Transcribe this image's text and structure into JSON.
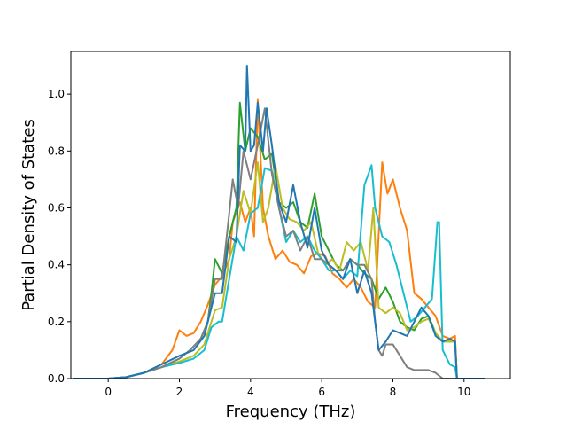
{
  "chart_data": {
    "type": "line",
    "title": "",
    "xlabel": "Frequency (THz)",
    "ylabel": "Partial Density of States",
    "xlim": [
      -1.05,
      11.3
    ],
    "ylim": [
      0.0,
      1.15
    ],
    "xticks": [
      0,
      2,
      4,
      6,
      8,
      10
    ],
    "yticks": [
      0.0,
      0.2,
      0.4,
      0.6,
      0.8,
      1.0
    ],
    "xtick_labels": [
      "0",
      "2",
      "4",
      "6",
      "8",
      "10"
    ],
    "ytick_labels": [
      "0.0",
      "0.2",
      "0.4",
      "0.6",
      "0.8",
      "1.0"
    ],
    "grid": false,
    "legend": "none",
    "series": [
      {
        "color": "#ff7f0e",
        "points": [
          [
            -1.0,
            0.0
          ],
          [
            0.0,
            0.0
          ],
          [
            0.5,
            0.005
          ],
          [
            1.0,
            0.02
          ],
          [
            1.5,
            0.05
          ],
          [
            1.8,
            0.1
          ],
          [
            2.0,
            0.17
          ],
          [
            2.2,
            0.15
          ],
          [
            2.4,
            0.16
          ],
          [
            2.6,
            0.2
          ],
          [
            2.8,
            0.26
          ],
          [
            3.0,
            0.33
          ],
          [
            3.2,
            0.36
          ],
          [
            3.4,
            0.42
          ],
          [
            3.5,
            0.55
          ],
          [
            3.7,
            0.62
          ],
          [
            3.85,
            0.55
          ],
          [
            4.0,
            0.6
          ],
          [
            4.1,
            0.5
          ],
          [
            4.2,
            0.98
          ],
          [
            4.35,
            0.6
          ],
          [
            4.5,
            0.5
          ],
          [
            4.7,
            0.42
          ],
          [
            4.9,
            0.45
          ],
          [
            5.1,
            0.41
          ],
          [
            5.3,
            0.4
          ],
          [
            5.5,
            0.37
          ],
          [
            5.7,
            0.43
          ],
          [
            5.9,
            0.44
          ],
          [
            6.1,
            0.43
          ],
          [
            6.3,
            0.37
          ],
          [
            6.5,
            0.35
          ],
          [
            6.7,
            0.32
          ],
          [
            6.9,
            0.35
          ],
          [
            7.1,
            0.32
          ],
          [
            7.3,
            0.27
          ],
          [
            7.5,
            0.25
          ],
          [
            7.7,
            0.76
          ],
          [
            7.85,
            0.65
          ],
          [
            8.0,
            0.7
          ],
          [
            8.2,
            0.6
          ],
          [
            8.4,
            0.52
          ],
          [
            8.6,
            0.3
          ],
          [
            8.8,
            0.28
          ],
          [
            9.0,
            0.25
          ],
          [
            9.2,
            0.22
          ],
          [
            9.4,
            0.15
          ],
          [
            9.6,
            0.14
          ],
          [
            9.75,
            0.15
          ],
          [
            9.8,
            0.0
          ],
          [
            10.6,
            0.0
          ]
        ]
      },
      {
        "color": "#2ca02c",
        "points": [
          [
            -1.0,
            0.0
          ],
          [
            0.0,
            0.0
          ],
          [
            0.5,
            0.005
          ],
          [
            1.0,
            0.02
          ],
          [
            1.5,
            0.04
          ],
          [
            2.0,
            0.07
          ],
          [
            2.3,
            0.1
          ],
          [
            2.6,
            0.14
          ],
          [
            2.8,
            0.2
          ],
          [
            2.9,
            0.3
          ],
          [
            3.0,
            0.42
          ],
          [
            3.2,
            0.37
          ],
          [
            3.4,
            0.5
          ],
          [
            3.6,
            0.6
          ],
          [
            3.7,
            0.97
          ],
          [
            3.85,
            0.8
          ],
          [
            4.0,
            0.88
          ],
          [
            4.2,
            0.85
          ],
          [
            4.4,
            0.77
          ],
          [
            4.6,
            0.79
          ],
          [
            4.8,
            0.62
          ],
          [
            5.0,
            0.6
          ],
          [
            5.2,
            0.62
          ],
          [
            5.4,
            0.55
          ],
          [
            5.6,
            0.53
          ],
          [
            5.8,
            0.65
          ],
          [
            6.0,
            0.5
          ],
          [
            6.2,
            0.45
          ],
          [
            6.4,
            0.4
          ],
          [
            6.6,
            0.38
          ],
          [
            6.8,
            0.42
          ],
          [
            7.0,
            0.4
          ],
          [
            7.2,
            0.37
          ],
          [
            7.4,
            0.35
          ],
          [
            7.6,
            0.28
          ],
          [
            7.8,
            0.32
          ],
          [
            8.0,
            0.27
          ],
          [
            8.2,
            0.2
          ],
          [
            8.4,
            0.18
          ],
          [
            8.6,
            0.17
          ],
          [
            8.8,
            0.21
          ],
          [
            9.0,
            0.22
          ],
          [
            9.2,
            0.16
          ],
          [
            9.4,
            0.13
          ],
          [
            9.6,
            0.13
          ],
          [
            9.75,
            0.13
          ],
          [
            9.8,
            0.0
          ],
          [
            10.6,
            0.0
          ]
        ]
      },
      {
        "color": "#bcbd22",
        "points": [
          [
            -1.0,
            0.0
          ],
          [
            0.0,
            0.0
          ],
          [
            0.5,
            0.005
          ],
          [
            1.0,
            0.02
          ],
          [
            1.5,
            0.04
          ],
          [
            2.0,
            0.06
          ],
          [
            2.4,
            0.08
          ],
          [
            2.7,
            0.12
          ],
          [
            2.9,
            0.2
          ],
          [
            3.0,
            0.24
          ],
          [
            3.2,
            0.25
          ],
          [
            3.4,
            0.42
          ],
          [
            3.6,
            0.5
          ],
          [
            3.8,
            0.66
          ],
          [
            4.0,
            0.58
          ],
          [
            4.2,
            0.76
          ],
          [
            4.35,
            0.55
          ],
          [
            4.5,
            0.6
          ],
          [
            4.7,
            0.75
          ],
          [
            4.9,
            0.6
          ],
          [
            5.1,
            0.56
          ],
          [
            5.3,
            0.55
          ],
          [
            5.5,
            0.52
          ],
          [
            5.7,
            0.55
          ],
          [
            5.9,
            0.44
          ],
          [
            6.1,
            0.4
          ],
          [
            6.3,
            0.42
          ],
          [
            6.5,
            0.38
          ],
          [
            6.7,
            0.48
          ],
          [
            6.9,
            0.45
          ],
          [
            7.1,
            0.48
          ],
          [
            7.3,
            0.38
          ],
          [
            7.45,
            0.6
          ],
          [
            7.6,
            0.25
          ],
          [
            7.8,
            0.23
          ],
          [
            8.0,
            0.25
          ],
          [
            8.2,
            0.23
          ],
          [
            8.4,
            0.17
          ],
          [
            8.6,
            0.18
          ],
          [
            8.8,
            0.2
          ],
          [
            9.0,
            0.21
          ],
          [
            9.2,
            0.16
          ],
          [
            9.4,
            0.13
          ],
          [
            9.6,
            0.13
          ],
          [
            9.75,
            0.13
          ],
          [
            9.8,
            0.0
          ],
          [
            10.6,
            0.0
          ]
        ]
      },
      {
        "color": "#17becf",
        "points": [
          [
            -1.0,
            0.0
          ],
          [
            0.0,
            0.0
          ],
          [
            0.5,
            0.005
          ],
          [
            1.0,
            0.02
          ],
          [
            1.5,
            0.04
          ],
          [
            2.0,
            0.055
          ],
          [
            2.4,
            0.07
          ],
          [
            2.7,
            0.1
          ],
          [
            2.9,
            0.18
          ],
          [
            3.1,
            0.2
          ],
          [
            3.2,
            0.2
          ],
          [
            3.4,
            0.35
          ],
          [
            3.6,
            0.5
          ],
          [
            3.8,
            0.45
          ],
          [
            4.0,
            0.58
          ],
          [
            4.2,
            0.6
          ],
          [
            4.4,
            0.74
          ],
          [
            4.6,
            0.73
          ],
          [
            4.8,
            0.6
          ],
          [
            5.0,
            0.48
          ],
          [
            5.2,
            0.52
          ],
          [
            5.4,
            0.48
          ],
          [
            5.6,
            0.5
          ],
          [
            5.8,
            0.45
          ],
          [
            6.0,
            0.42
          ],
          [
            6.2,
            0.38
          ],
          [
            6.4,
            0.38
          ],
          [
            6.6,
            0.35
          ],
          [
            6.8,
            0.38
          ],
          [
            7.0,
            0.36
          ],
          [
            7.2,
            0.68
          ],
          [
            7.4,
            0.75
          ],
          [
            7.5,
            0.6
          ],
          [
            7.7,
            0.5
          ],
          [
            7.9,
            0.48
          ],
          [
            8.1,
            0.4
          ],
          [
            8.3,
            0.3
          ],
          [
            8.5,
            0.2
          ],
          [
            8.7,
            0.22
          ],
          [
            8.9,
            0.25
          ],
          [
            9.1,
            0.28
          ],
          [
            9.25,
            0.55
          ],
          [
            9.3,
            0.55
          ],
          [
            9.4,
            0.1
          ],
          [
            9.6,
            0.05
          ],
          [
            9.75,
            0.04
          ],
          [
            9.8,
            0.0
          ],
          [
            10.6,
            0.0
          ]
        ]
      },
      {
        "color": "#7f7f7f",
        "points": [
          [
            -1.0,
            0.0
          ],
          [
            0.0,
            0.0
          ],
          [
            0.5,
            0.005
          ],
          [
            1.0,
            0.02
          ],
          [
            1.5,
            0.04
          ],
          [
            2.0,
            0.07
          ],
          [
            2.3,
            0.1
          ],
          [
            2.6,
            0.14
          ],
          [
            2.8,
            0.2
          ],
          [
            3.0,
            0.35
          ],
          [
            3.2,
            0.35
          ],
          [
            3.4,
            0.58
          ],
          [
            3.5,
            0.7
          ],
          [
            3.65,
            0.6
          ],
          [
            3.8,
            0.8
          ],
          [
            4.0,
            0.7
          ],
          [
            4.2,
            0.82
          ],
          [
            4.4,
            0.95
          ],
          [
            4.6,
            0.72
          ],
          [
            4.8,
            0.6
          ],
          [
            5.0,
            0.5
          ],
          [
            5.2,
            0.52
          ],
          [
            5.4,
            0.45
          ],
          [
            5.6,
            0.5
          ],
          [
            5.8,
            0.42
          ],
          [
            6.0,
            0.42
          ],
          [
            6.2,
            0.4
          ],
          [
            6.4,
            0.38
          ],
          [
            6.6,
            0.38
          ],
          [
            6.8,
            0.42
          ],
          [
            7.0,
            0.4
          ],
          [
            7.2,
            0.4
          ],
          [
            7.4,
            0.35
          ],
          [
            7.5,
            0.2
          ],
          [
            7.6,
            0.1
          ],
          [
            7.7,
            0.08
          ],
          [
            7.8,
            0.12
          ],
          [
            8.0,
            0.12
          ],
          [
            8.2,
            0.08
          ],
          [
            8.4,
            0.04
          ],
          [
            8.6,
            0.03
          ],
          [
            8.8,
            0.03
          ],
          [
            9.0,
            0.03
          ],
          [
            9.2,
            0.02
          ],
          [
            9.4,
            0.0
          ],
          [
            10.6,
            0.0
          ]
        ]
      },
      {
        "color": "#1f77b4",
        "points": [
          [
            -1.0,
            0.0
          ],
          [
            0.0,
            0.0
          ],
          [
            0.5,
            0.005
          ],
          [
            1.0,
            0.02
          ],
          [
            1.5,
            0.05
          ],
          [
            2.0,
            0.08
          ],
          [
            2.4,
            0.1
          ],
          [
            2.7,
            0.15
          ],
          [
            2.9,
            0.25
          ],
          [
            3.0,
            0.3
          ],
          [
            3.2,
            0.3
          ],
          [
            3.4,
            0.5
          ],
          [
            3.6,
            0.48
          ],
          [
            3.7,
            0.82
          ],
          [
            3.85,
            0.8
          ],
          [
            3.9,
            1.1
          ],
          [
            4.0,
            0.8
          ],
          [
            4.1,
            0.82
          ],
          [
            4.2,
            0.97
          ],
          [
            4.35,
            0.8
          ],
          [
            4.45,
            0.95
          ],
          [
            4.6,
            0.82
          ],
          [
            4.8,
            0.62
          ],
          [
            5.0,
            0.55
          ],
          [
            5.2,
            0.68
          ],
          [
            5.4,
            0.55
          ],
          [
            5.6,
            0.46
          ],
          [
            5.8,
            0.6
          ],
          [
            6.0,
            0.45
          ],
          [
            6.2,
            0.4
          ],
          [
            6.4,
            0.38
          ],
          [
            6.6,
            0.35
          ],
          [
            6.8,
            0.42
          ],
          [
            7.0,
            0.3
          ],
          [
            7.2,
            0.38
          ],
          [
            7.4,
            0.3
          ],
          [
            7.6,
            0.1
          ],
          [
            7.8,
            0.13
          ],
          [
            8.0,
            0.17
          ],
          [
            8.2,
            0.16
          ],
          [
            8.4,
            0.15
          ],
          [
            8.6,
            0.2
          ],
          [
            8.8,
            0.25
          ],
          [
            9.0,
            0.22
          ],
          [
            9.2,
            0.15
          ],
          [
            9.4,
            0.13
          ],
          [
            9.6,
            0.14
          ],
          [
            9.75,
            0.13
          ],
          [
            9.8,
            0.0
          ],
          [
            10.6,
            0.0
          ]
        ]
      }
    ]
  }
}
